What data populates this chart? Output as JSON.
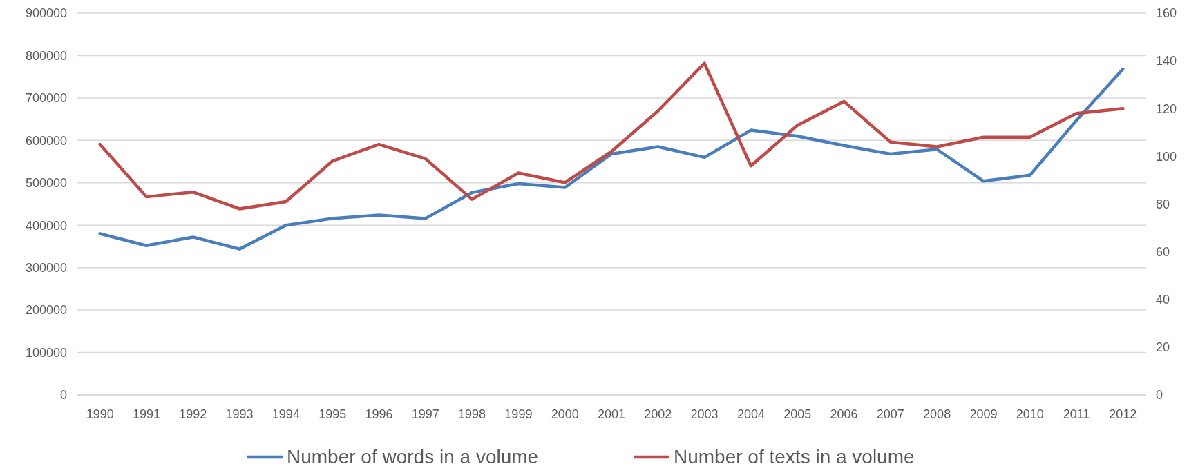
{
  "chart_data": {
    "type": "line",
    "categories": [
      "1990",
      "1991",
      "1992",
      "1993",
      "1994",
      "1995",
      "1996",
      "1997",
      "1998",
      "1999",
      "2000",
      "2001",
      "2002",
      "2003",
      "2004",
      "2005",
      "2006",
      "2007",
      "2008",
      "2009",
      "2010",
      "2011",
      "2012"
    ],
    "series": [
      {
        "name": "Number of words in a volume",
        "color": "#4a7ebb",
        "values": [
          380000,
          352000,
          372000,
          344000,
          400000,
          416000,
          424000,
          416000,
          477000,
          498000,
          489000,
          568000,
          585000,
          560000,
          624000,
          610000,
          588000,
          568000,
          579000,
          504000,
          518000,
          647000,
          768000
        ]
      },
      {
        "name": "Number of texts in a volume",
        "color": "#be4b48",
        "axis": "y2",
        "values": [
          105,
          83,
          85,
          78,
          81,
          98,
          105,
          99,
          82,
          93,
          89,
          102,
          119,
          139,
          96,
          113,
          123,
          106,
          104,
          108,
          108,
          118,
          120
        ]
      }
    ],
    "ylim": [
      0,
      900000
    ],
    "yticks": [
      0,
      100000,
      200000,
      300000,
      400000,
      500000,
      600000,
      700000,
      800000,
      900000
    ],
    "y2lim": [
      0,
      160
    ],
    "y2ticks": [
      0,
      20,
      40,
      60,
      80,
      100,
      120,
      140,
      160
    ],
    "grid": "y",
    "legend": "bottom",
    "marker": "none",
    "line_style": "solid"
  }
}
